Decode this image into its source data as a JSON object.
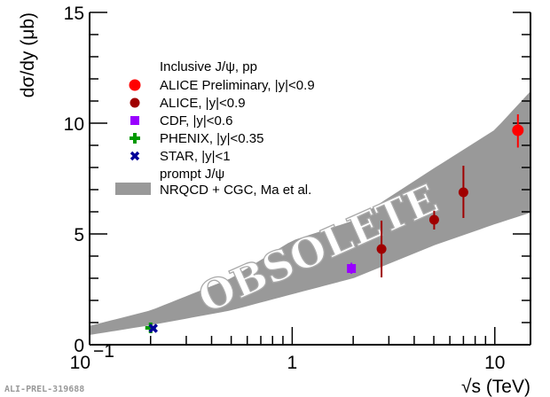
{
  "chart_data": {
    "type": "scatter",
    "xlabel": "√s (TeV)",
    "ylabel": "dσ/dy (μb)",
    "xscale": "log",
    "xlim": [
      0.1,
      15
    ],
    "ylim": [
      0,
      15
    ],
    "xticks": [
      {
        "v": 0.1,
        "label": "10",
        "sup": "−1"
      },
      {
        "v": 1,
        "label": "1",
        "sup": ""
      },
      {
        "v": 10,
        "label": "10",
        "sup": ""
      }
    ],
    "yticks": [
      "0",
      "5",
      "10",
      "15"
    ],
    "legend": {
      "placement": "top-left",
      "header": "Inclusive J/ψ, pp",
      "subheader": "prompt J/ψ"
    },
    "series": [
      {
        "name": "ALICE Preliminary, |y|<0.9",
        "marker": "circle-large",
        "color": "#ff0000",
        "points": [
          {
            "x": 13,
            "y": 9.68,
            "ylo": 8.9,
            "yhi": 10.4
          }
        ]
      },
      {
        "name": "ALICE, |y|<0.9",
        "marker": "circle",
        "color": "#a00000",
        "points": [
          {
            "x": 2.76,
            "y": 4.32,
            "ylo": 3.04,
            "yhi": 5.6
          },
          {
            "x": 5.02,
            "y": 5.64,
            "ylo": 5.2,
            "yhi": 6.05
          },
          {
            "x": 7,
            "y": 6.88,
            "ylo": 5.72,
            "yhi": 8.08
          }
        ]
      },
      {
        "name": "CDF, |y|<0.6",
        "marker": "square",
        "color": "#9900ff",
        "points": [
          {
            "x": 1.96,
            "y": 3.44,
            "ylo": 3.2,
            "yhi": 3.7
          }
        ]
      },
      {
        "name": "PHENIX, |y|<0.35",
        "marker": "cross",
        "color": "#009900",
        "points": [
          {
            "x": 0.2,
            "y": 0.76,
            "ylo": 0.66,
            "yhi": 0.86
          }
        ]
      },
      {
        "name": "STAR, |y|<1",
        "marker": "x",
        "color": "#000099",
        "points": [
          {
            "x": 0.2,
            "y": 0.74,
            "ylo": 0.68,
            "yhi": 0.8
          }
        ]
      }
    ],
    "band": {
      "name": "NRQCD + CGC, Ma et al.",
      "color": "#999999",
      "x": [
        0.1,
        0.2,
        0.5,
        1,
        2,
        5,
        10,
        15
      ],
      "upper": [
        0.85,
        1.55,
        3.0,
        4.7,
        5.6,
        7.96,
        9.7,
        11.44
      ],
      "lower": [
        0.44,
        0.88,
        1.55,
        2.28,
        3.0,
        4.48,
        5.44,
        5.96
      ]
    }
  },
  "watermark": "OBSOLETE",
  "reference": "ALI-PREL-319688"
}
